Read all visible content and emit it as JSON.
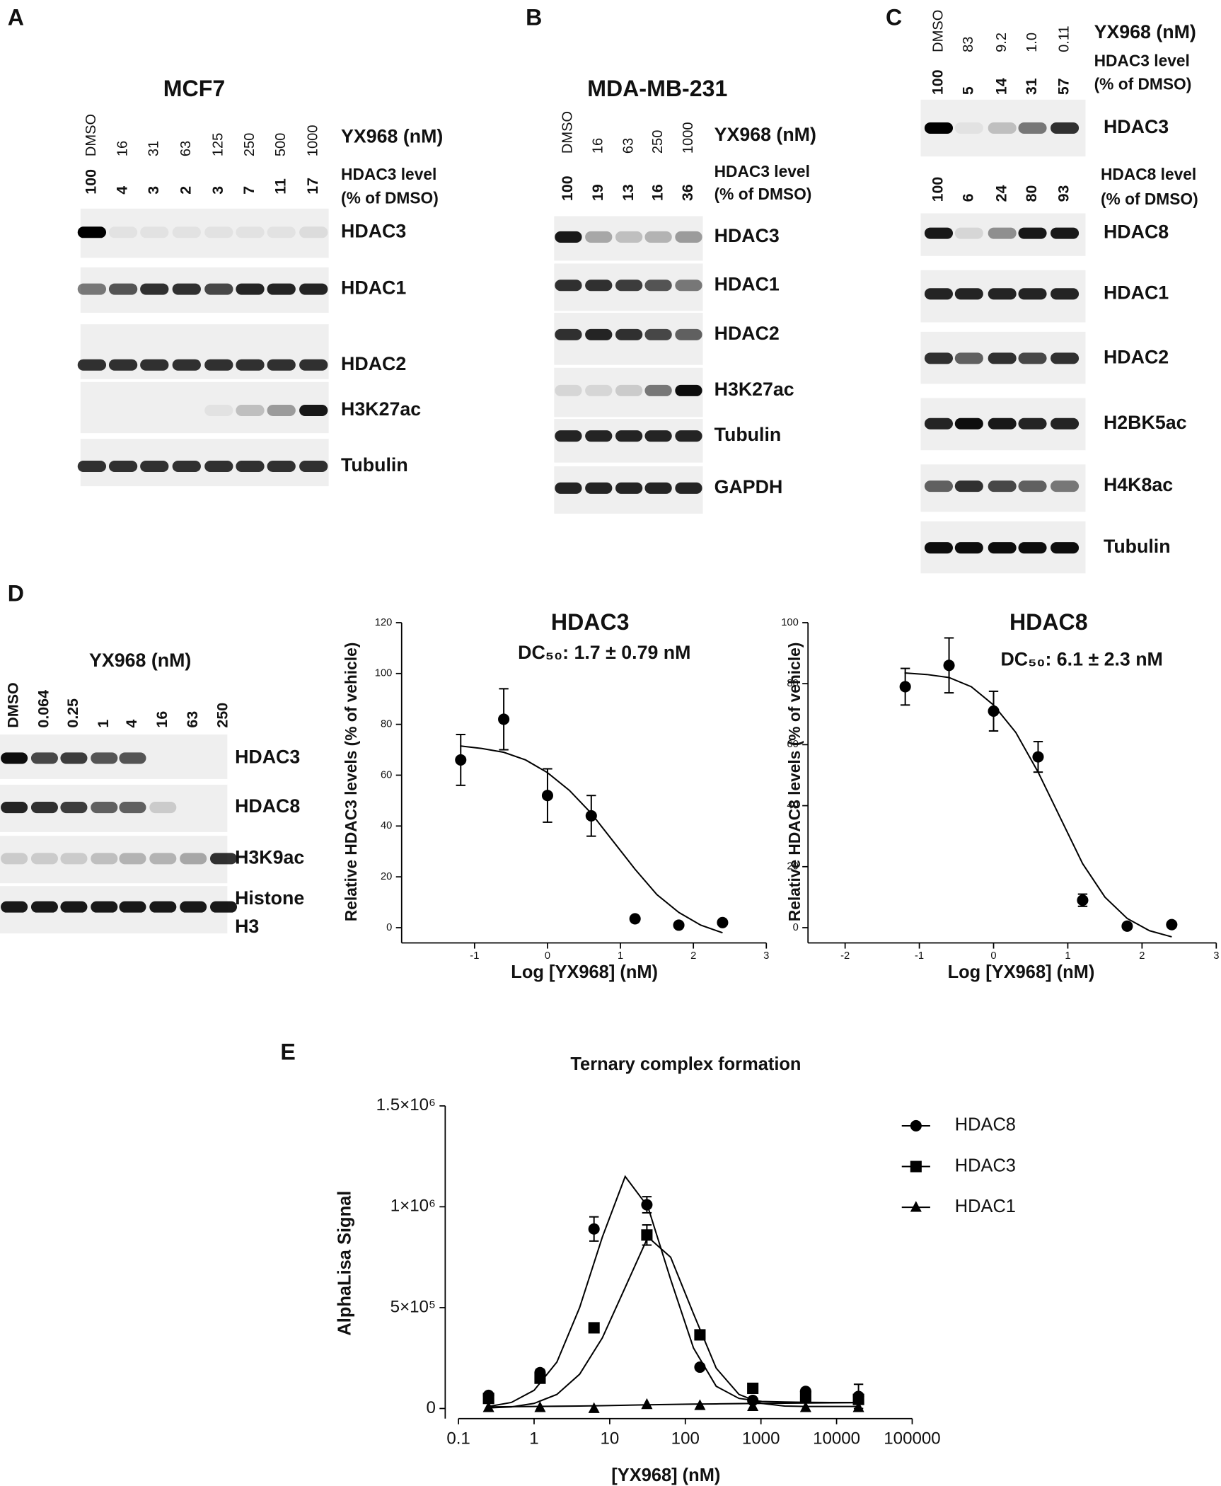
{
  "blots": [
    {
      "panel": "A",
      "cell_line": "MCF7",
      "treatment": "YX968 (nM)",
      "lanes": [
        "DMSO",
        "16",
        "31",
        "63",
        "125",
        "250",
        "500",
        "1000"
      ],
      "level_label": [
        "HDAC3 level",
        "(% of DMSO)"
      ],
      "levels": [
        "100",
        "4",
        "3",
        "2",
        "3",
        "7",
        "11",
        "17"
      ],
      "proteins": [
        "HDAC3",
        "HDAC1",
        "HDAC2",
        "H3K27ac",
        "Tubulin"
      ]
    },
    {
      "panel": "B",
      "cell_line": "MDA-MB-231",
      "treatment": "YX968 (nM)",
      "lanes": [
        "DMSO",
        "16",
        "63",
        "250",
        "1000"
      ],
      "level_label": [
        "HDAC3 level",
        "(% of DMSO)"
      ],
      "levels": [
        "100",
        "19",
        "13",
        "16",
        "36"
      ],
      "proteins": [
        "HDAC3",
        "HDAC1",
        "HDAC2",
        "H3K27ac",
        "Tubulin",
        "GAPDH"
      ]
    },
    {
      "panel": "C",
      "treatment": "YX968 (nM)",
      "lanes": [
        "DMSO",
        "83",
        "9.2",
        "1.0",
        "0.11"
      ],
      "level_label": [
        "HDAC3 level",
        "(% of DMSO)"
      ],
      "levels": [
        "100",
        "5",
        "14",
        "31",
        "57"
      ],
      "level_label2": [
        "HDAC8 level",
        "(% of DMSO)"
      ],
      "levels2": [
        "100",
        "6",
        "24",
        "80",
        "93"
      ],
      "proteins": [
        "HDAC3",
        "HDAC8",
        "HDAC1",
        "HDAC2",
        "H2BK5ac",
        "H4K8ac",
        "Tubulin"
      ]
    },
    {
      "panel": "D",
      "treatment": "YX968 (nM)",
      "lanes": [
        "DMSO",
        "0.064",
        "0.25",
        "1",
        "4",
        "16",
        "63",
        "250"
      ],
      "proteins": [
        "HDAC3",
        "HDAC8",
        "H3K9ac",
        "Histone H3"
      ]
    }
  ],
  "chart_data": [
    {
      "type": "scatter",
      "title": "HDAC3",
      "subtitle": "DC₅₀: 1.7 ± 0.79 nM",
      "xlabel": "Log [YX968] (nM)",
      "ylabel": "Relative HDAC3 levels (% of vehicle)",
      "x": [
        -1.19,
        -0.6,
        0,
        0.6,
        1.2,
        1.8,
        2.4
      ],
      "values": [
        66,
        82,
        52,
        44,
        3.5,
        1,
        2
      ],
      "errors": [
        10,
        12,
        10.5,
        8,
        0,
        0,
        0
      ],
      "fit_x": [
        -1.2,
        -0.9,
        -0.6,
        -0.3,
        0,
        0.3,
        0.6,
        0.9,
        1.2,
        1.5,
        1.8,
        2.1,
        2.4
      ],
      "fit_values": [
        71.5,
        70.5,
        69,
        66,
        61,
        54,
        45,
        34,
        23,
        13,
        6,
        1,
        -2
      ],
      "color": "#000000",
      "marker": "circle",
      "xlim": [
        -2,
        3
      ],
      "xticks": [
        -1,
        0,
        1,
        2,
        3
      ],
      "ylim": [
        -6,
        120
      ],
      "yticks": [
        0,
        20,
        40,
        60,
        80,
        100,
        120
      ]
    },
    {
      "type": "scatter",
      "title": "HDAC8",
      "subtitle": "DC₅₀: 6.1 ± 2.3 nM",
      "xlabel": "Log [YX968] (nM)",
      "ylabel": "Relative HDAC8 levels (% of vehicle)",
      "x": [
        -1.19,
        -0.6,
        0,
        0.6,
        1.2,
        1.8,
        2.4
      ],
      "values": [
        79,
        86,
        71,
        56,
        9,
        0.5,
        1
      ],
      "errors": [
        6,
        9,
        6.5,
        5,
        2,
        0,
        0
      ],
      "fit_x": [
        -1.2,
        -0.9,
        -0.6,
        -0.3,
        0,
        0.3,
        0.6,
        0.9,
        1.2,
        1.5,
        1.8,
        2.1,
        2.4
      ],
      "fit_values": [
        83.5,
        83,
        82,
        79,
        73,
        64,
        51,
        36,
        21,
        10,
        3,
        -1,
        -3
      ],
      "color": "#000000",
      "marker": "circle",
      "xlim": [
        -2.5,
        3
      ],
      "xticks": [
        -2,
        -1,
        0,
        1,
        2,
        3
      ],
      "ylim": [
        -5,
        100
      ],
      "yticks": [
        0,
        20,
        40,
        60,
        80,
        100
      ]
    },
    {
      "type": "scatter",
      "panel": "E",
      "title": "Ternary complex formation",
      "xlabel": "[YX968] (nM)",
      "ylabel": "AlphaLisa Signal",
      "log_x": true,
      "legend": "right",
      "x": [
        0.25,
        1.2,
        6.2,
        31,
        156,
        780,
        3900,
        19500
      ],
      "fit_x": [
        0.25,
        0.5,
        1,
        2,
        4,
        8,
        16,
        32,
        64,
        128,
        256,
        512,
        1024,
        2048,
        4096,
        8192,
        19500
      ],
      "series": [
        {
          "name": "HDAC8",
          "color": "#000000",
          "marker": "circle",
          "values": [
            65000,
            178000,
            890000,
            1010000,
            205000,
            40000,
            85000,
            60000
          ],
          "errors": [
            5000,
            15000,
            60000,
            40000,
            10000,
            5000,
            10000,
            60000
          ],
          "fit_values": [
            10000,
            30000,
            90000,
            230000,
            500000,
            850000,
            1150000,
            1000000,
            640000,
            300000,
            110000,
            50000,
            35000,
            32000,
            31000,
            30000,
            30000
          ]
        },
        {
          "name": "HDAC3",
          "color": "#000000",
          "marker": "square",
          "values": [
            50000,
            150000,
            400000,
            860000,
            365000,
            100000,
            60000,
            45000
          ],
          "errors": [
            5000,
            10000,
            10000,
            50000,
            10000,
            5000,
            5000,
            20000
          ],
          "fit_values": [
            3000,
            8000,
            25000,
            70000,
            170000,
            350000,
            600000,
            850000,
            750000,
            470000,
            200000,
            70000,
            25000,
            12000,
            10000,
            10000,
            10000
          ]
        },
        {
          "name": "HDAC1",
          "color": "#000000",
          "marker": "triangle",
          "values": [
            5000,
            5000,
            0,
            20000,
            15000,
            10000,
            5000,
            5000
          ],
          "fit_values": [
            8000,
            9000,
            10000,
            11000,
            12000,
            14000,
            16000,
            18000,
            20000,
            22000,
            23000,
            24000,
            25000,
            26000,
            27000,
            28000,
            29000
          ]
        }
      ],
      "xlim": [
        0.1,
        100000
      ],
      "xticks": [
        0.1,
        1,
        10,
        100,
        1000,
        10000,
        100000
      ],
      "ylim": [
        -50000,
        1500000
      ],
      "yticks": [
        0,
        {
          "value": 500000,
          "label": "5×10⁵"
        },
        {
          "value": 1000000,
          "label": "1×10⁶"
        },
        {
          "value": 1500000,
          "label": "1.5×10⁶"
        }
      ]
    }
  ]
}
